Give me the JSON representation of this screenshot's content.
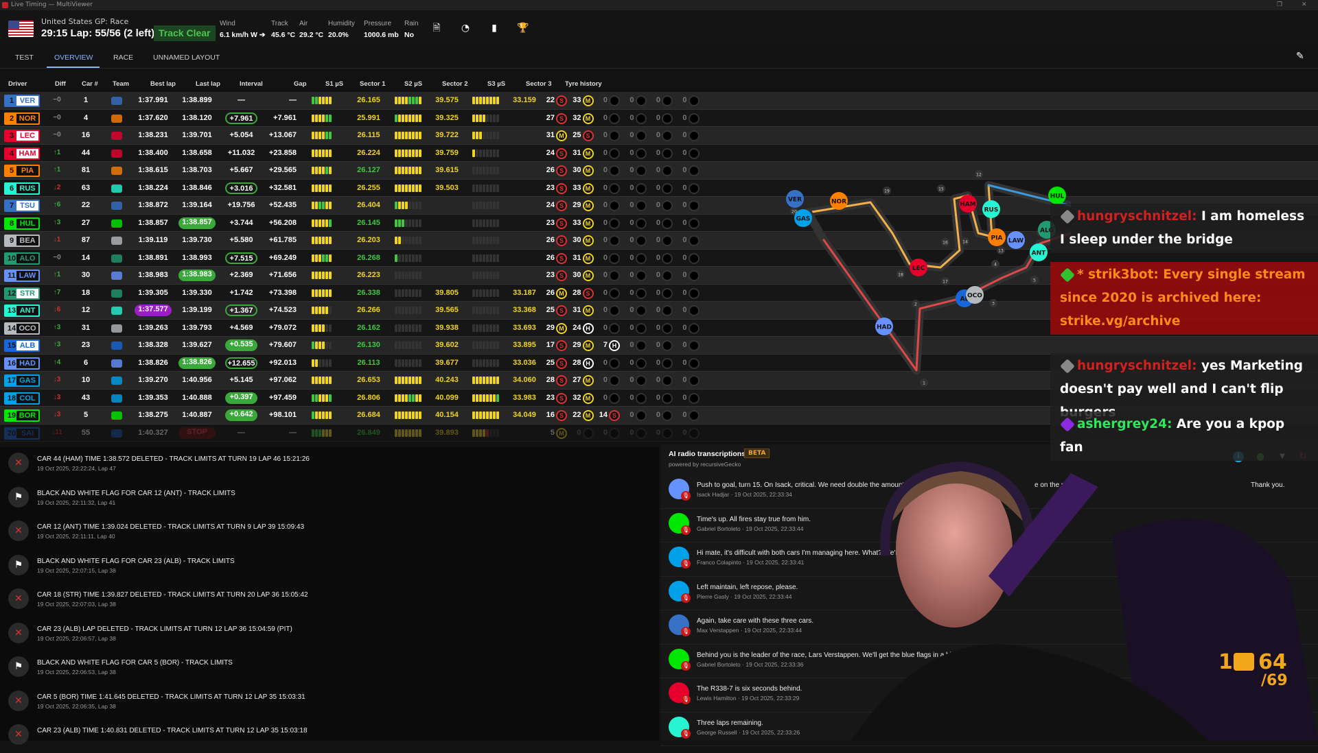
{
  "window": {
    "title": "Live Timing — MultiViewer"
  },
  "header": {
    "event": "United States GP: Race",
    "lap_line": "29:15 Lap: 55/56 (2 left)",
    "track_status": "Track Clear",
    "weather": [
      {
        "label": "Wind",
        "value": "6.1 km/h W ➔"
      },
      {
        "label": "Track",
        "value": "45.6 °C"
      },
      {
        "label": "Air",
        "value": "29.2 °C"
      },
      {
        "label": "Humidity",
        "value": "20.0%"
      },
      {
        "label": "Pressure",
        "value": "1000.6 mb"
      },
      {
        "label": "Rain",
        "value": "No"
      }
    ],
    "icons": [
      "document-search-icon",
      "speedometer-icon",
      "bar-chart-icon",
      "trophy-icon"
    ]
  },
  "tabs": [
    {
      "label": "TEST"
    },
    {
      "label": "OVERVIEW",
      "active": true
    },
    {
      "label": "RACE"
    },
    {
      "label": "UNNAMED LAYOUT"
    }
  ],
  "table": {
    "columns": [
      "Driver",
      "Diff",
      "Car #",
      "Team",
      "Best lap",
      "Last lap",
      "Interval",
      "Gap",
      "S1 µS",
      "Sector 1",
      "S2 µS",
      "Sector 2",
      "S3 µS",
      "Sector 3",
      "Tyre history"
    ],
    "rows": [
      {
        "pos": "1",
        "code": "VER",
        "color": "#3671C6",
        "light": true,
        "diff": "−0",
        "car": "1",
        "team": "Red Bull",
        "best": "1:37.991",
        "last": "1:38.899",
        "interval": "—",
        "gap": "—",
        "s1b": "ggyyyy",
        "s1": "26.165",
        "s1c": "y",
        "s2b": "yyyygggy",
        "s2": "39.575",
        "s2c": "y",
        "s3b": "yyyyyyyy",
        "s3": "33.159",
        "tyres": [
          [
            "22",
            "S"
          ],
          [
            "33",
            "M"
          ]
        ]
      },
      {
        "pos": "2",
        "code": "NOR",
        "color": "#FF8000",
        "diff": "−0",
        "car": "4",
        "team": "McLaren",
        "best": "1:37.620",
        "last": "1:38.120",
        "interval": "+7.961",
        "int_style": "outline",
        "gap": "+7.961",
        "s1b": "yyyygg",
        "s1": "25.991",
        "s1c": "y",
        "s2b": "gyyyyyyy",
        "s2": "39.325",
        "s2c": "y",
        "s3b": "yyyydddd",
        "s3": "",
        "tyres": [
          [
            "27",
            "S"
          ],
          [
            "32",
            "M"
          ]
        ]
      },
      {
        "pos": "3",
        "code": "LEC",
        "color": "#E8002D",
        "light": true,
        "diff": "−0",
        "car": "16",
        "team": "Ferrari",
        "best": "1:38.231",
        "last": "1:39.701",
        "interval": "+5.054",
        "gap": "+13.067",
        "s1b": "yyyygg",
        "s1": "26.115",
        "s1c": "y",
        "s2b": "yyyyyyyy",
        "s2": "39.722",
        "s2c": "y",
        "s3b": "yyyddddd",
        "s3": "",
        "tyres": [
          [
            "31",
            "M"
          ],
          [
            "25",
            "S"
          ]
        ]
      },
      {
        "pos": "4",
        "code": "HAM",
        "color": "#E8002D",
        "light": true,
        "diff": "↑1",
        "car": "44",
        "team": "Ferrari",
        "best": "1:38.400",
        "last": "1:38.658",
        "interval": "+11.032",
        "gap": "+23.858",
        "s1b": "yyyyyy",
        "s1": "26.224",
        "s1c": "y",
        "s2b": "yyyyyyyy",
        "s2": "39.759",
        "s2c": "y",
        "s3b": "yddddddd",
        "s3": "",
        "tyres": [
          [
            "24",
            "S"
          ],
          [
            "31",
            "M"
          ]
        ]
      },
      {
        "pos": "5",
        "code": "PIA",
        "color": "#FF8000",
        "diff": "↑1",
        "car": "81",
        "team": "McLaren",
        "best": "1:38.615",
        "last": "1:38.703",
        "interval": "+5.667",
        "gap": "+29.565",
        "s1b": "yyyygy",
        "s1": "26.127",
        "s1c": "g",
        "s2b": "yyyyyyyy",
        "s2": "39.615",
        "s2c": "y",
        "s3b": "dddddddd",
        "s3": "",
        "tyres": [
          [
            "26",
            "S"
          ],
          [
            "30",
            "M"
          ]
        ]
      },
      {
        "pos": "6",
        "code": "RUS",
        "color": "#27F4D2",
        "diff": "↓2",
        "car": "63",
        "team": "Mercedes",
        "best": "1:38.224",
        "last": "1:38.846",
        "interval": "+3.016",
        "int_style": "outline",
        "gap": "+32.581",
        "s1b": "yyyyyy",
        "s1": "26.255",
        "s1c": "y",
        "s2b": "yyyyyyyy",
        "s2": "39.503",
        "s2c": "y",
        "s3b": "dddddddd",
        "s3": "",
        "tyres": [
          [
            "23",
            "S"
          ],
          [
            "33",
            "M"
          ]
        ]
      },
      {
        "pos": "7",
        "code": "TSU",
        "color": "#3671C6",
        "light": true,
        "diff": "↑6",
        "car": "22",
        "team": "Red Bull",
        "best": "1:38.872",
        "last": "1:39.164",
        "interval": "+19.756",
        "gap": "+52.435",
        "s1b": "yyggyy",
        "s1": "26.404",
        "s1c": "y",
        "s2b": "gyyydddd",
        "s2": "",
        "s2c": "y",
        "s3b": "dddddddd",
        "s3": "",
        "tyres": [
          [
            "24",
            "S"
          ],
          [
            "29",
            "M"
          ]
        ]
      },
      {
        "pos": "8",
        "code": "HUL",
        "color": "#00E701",
        "diff": "↑3",
        "car": "27",
        "team": "Kick Sauber",
        "best": "1:38.857",
        "last": "1:38.857",
        "last_style": "green",
        "interval": "+3.744",
        "gap": "+56.208",
        "s1b": "yyyyyg",
        "s1": "26.145",
        "s1c": "g",
        "s2b": "gggddddd",
        "s2": "",
        "s2c": "y",
        "s3b": "dddddddd",
        "s3": "",
        "tyres": [
          [
            "23",
            "S"
          ],
          [
            "33",
            "M"
          ]
        ]
      },
      {
        "pos": "9",
        "code": "BEA",
        "color": "#B6BABD",
        "diff": "↓1",
        "car": "87",
        "team": "Haas",
        "best": "1:39.119",
        "last": "1:39.730",
        "interval": "+5.580",
        "gap": "+61.785",
        "s1b": "yyyyyy",
        "s1": "26.203",
        "s1c": "y",
        "s2b": "yydddddd",
        "s2": "",
        "s2c": "y",
        "s3b": "dddddddd",
        "s3": "",
        "tyres": [
          [
            "26",
            "S"
          ],
          [
            "30",
            "M"
          ]
        ]
      },
      {
        "pos": "10",
        "code": "ALO",
        "color": "#229971",
        "diff": "−0",
        "car": "14",
        "team": "Aston Martin",
        "best": "1:38.891",
        "last": "1:38.993",
        "interval": "+7.515",
        "int_style": "outline",
        "gap": "+69.249",
        "s1b": "yyyggy",
        "s1": "26.268",
        "s1c": "g",
        "s2b": "gddddddd",
        "s2": "",
        "s2c": "y",
        "s3b": "dddddddd",
        "s3": "",
        "tyres": [
          [
            "26",
            "S"
          ],
          [
            "31",
            "M"
          ]
        ]
      },
      {
        "pos": "11",
        "code": "LAW",
        "color": "#6692FF",
        "diff": "↑1",
        "car": "30",
        "team": "Racing Bulls",
        "best": "1:38.983",
        "last": "1:38.983",
        "last_style": "green",
        "interval": "+2.369",
        "gap": "+71.656",
        "s1b": "yyyyyy",
        "s1": "26.223",
        "s1c": "y",
        "s2b": "dddddddd",
        "s2": "",
        "s2c": "y",
        "s3b": "dddddddd",
        "s3": "",
        "tyres": [
          [
            "23",
            "S"
          ],
          [
            "30",
            "M"
          ]
        ]
      },
      {
        "pos": "12",
        "code": "STR",
        "color": "#229971",
        "light": true,
        "diff": "↑7",
        "car": "18",
        "team": "Aston Martin",
        "best": "1:39.305",
        "last": "1:39.330",
        "interval": "+1.742",
        "gap": "+73.398",
        "s1b": "yyyyyy",
        "s1": "26.338",
        "s1c": "g",
        "s2b": "dddddddd",
        "s2": "39.805",
        "s2c": "y",
        "s3b": "dddddddd",
        "s3": "33.187",
        "tyres": [
          [
            "26",
            "M"
          ],
          [
            "28",
            "S"
          ]
        ]
      },
      {
        "pos": "13",
        "code": "ANT",
        "color": "#27F4D2",
        "diff": "↓6",
        "car": "12",
        "team": "Mercedes",
        "best": "1:37.577",
        "best_style": "purple",
        "last": "1:39.199",
        "interval": "+1.367",
        "int_style": "outline",
        "gap": "+74.523",
        "s1b": "yyyyyd",
        "s1": "26.266",
        "s1c": "y",
        "s2b": "dddddddd",
        "s2": "39.565",
        "s2c": "y",
        "s3b": "dddddddd",
        "s3": "33.368",
        "tyres": [
          [
            "25",
            "S"
          ],
          [
            "31",
            "M"
          ]
        ]
      },
      {
        "pos": "14",
        "code": "OCO",
        "color": "#B6BABD",
        "diff": "↑3",
        "car": "31",
        "team": "Haas",
        "best": "1:39.263",
        "last": "1:39.793",
        "interval": "+4.569",
        "gap": "+79.072",
        "s1b": "yyyydd",
        "s1": "26.162",
        "s1c": "g",
        "s2b": "dddddddd",
        "s2": "39.938",
        "s2c": "y",
        "s3b": "dddddddd",
        "s3": "33.693",
        "tyres": [
          [
            "29",
            "M"
          ],
          [
            "24",
            "H"
          ]
        ]
      },
      {
        "pos": "15",
        "code": "ALB",
        "color": "#1868DB",
        "light": true,
        "diff": "↑3",
        "car": "23",
        "team": "Williams",
        "best": "1:38.328",
        "last": "1:39.627",
        "interval": "+0.535",
        "int_style": "fill",
        "gap": "+79.607",
        "s1b": "gyyydd",
        "s1": "26.130",
        "s1c": "g",
        "s2b": "dddddddd",
        "s2": "39.602",
        "s2c": "y",
        "s3b": "dddddddd",
        "s3": "33.895",
        "tyres": [
          [
            "17",
            "S"
          ],
          [
            "29",
            "M"
          ],
          [
            "7",
            "H"
          ]
        ]
      },
      {
        "pos": "16",
        "code": "HAD",
        "color": "#6692FF",
        "diff": "↑4",
        "car": "6",
        "team": "Racing Bulls",
        "best": "1:38.826",
        "last": "1:38.826",
        "last_style": "green",
        "interval": "+12.655",
        "int_style": "outline",
        "gap": "+92.013",
        "s1b": "yydddd",
        "s1": "26.113",
        "s1c": "g",
        "s2b": "dddddddd",
        "s2": "39.677",
        "s2c": "y",
        "s3b": "dddddddd",
        "s3": "33.036",
        "tyres": [
          [
            "25",
            "S"
          ],
          [
            "28",
            "H"
          ]
        ]
      },
      {
        "pos": "17",
        "code": "GAS",
        "color": "#00A1E8",
        "diff": "↓3",
        "car": "10",
        "team": "Alpine",
        "best": "1:39.270",
        "last": "1:40.956",
        "interval": "+5.145",
        "gap": "+97.062",
        "s1b": "yyyyyy",
        "s1": "26.653",
        "s1c": "y",
        "s2b": "yyyyyyyy",
        "s2": "40.243",
        "s2c": "y",
        "s3b": "yyyyyyyy",
        "s3": "34.060",
        "tyres": [
          [
            "28",
            "S"
          ],
          [
            "27",
            "M"
          ]
        ]
      },
      {
        "pos": "18",
        "code": "COL",
        "color": "#00A1E8",
        "diff": "↓3",
        "car": "43",
        "team": "Alpine",
        "best": "1:39.353",
        "last": "1:40.888",
        "interval": "+0.397",
        "int_style": "fill",
        "gap": "+97.459",
        "s1b": "ggyyyg",
        "s1": "26.806",
        "s1c": "y",
        "s2b": "yyyyggyy",
        "s2": "40.099",
        "s2c": "y",
        "s3b": "yyyyyyyg",
        "s3": "33.983",
        "tyres": [
          [
            "23",
            "S"
          ],
          [
            "32",
            "M"
          ]
        ]
      },
      {
        "pos": "19",
        "code": "BOR",
        "color": "#00E701",
        "diff": "↓3",
        "car": "5",
        "team": "Kick Sauber",
        "best": "1:38.275",
        "last": "1:40.887",
        "interval": "+0.642",
        "int_style": "fill",
        "gap": "+98.101",
        "s1b": "gyyyyy",
        "s1": "26.684",
        "s1c": "y",
        "s2b": "yyyyyyyy",
        "s2": "40.154",
        "s2c": "y",
        "s3b": "yyyyyyyy",
        "s3": "34.049",
        "tyres": [
          [
            "16",
            "S"
          ],
          [
            "22",
            "M"
          ],
          [
            "14",
            "S"
          ]
        ]
      },
      {
        "pos": "20",
        "code": "SAI",
        "color": "#1868DB",
        "dim": true,
        "diff": "↓11",
        "car": "55",
        "team": "Williams",
        "best": "1:40.327",
        "last": "STOP",
        "last_style": "stop",
        "interval": "—",
        "gap": "—",
        "s1b": "gggyyy",
        "s1": "26.849",
        "s1c": "g",
        "s2b": "yyyyyyyy",
        "s2": "39.893",
        "s2c": "y",
        "s3b": "yyyyrddd",
        "s3": "",
        "tyres": [
          [
            "5",
            "M"
          ]
        ]
      }
    ]
  },
  "map": {
    "cars": [
      {
        "code": "VER",
        "color": "#3671C6"
      },
      {
        "code": "GAS",
        "color": "#00A1E8"
      },
      {
        "code": "NOR",
        "color": "#FF8000"
      },
      {
        "code": "LEC",
        "color": "#E8002D"
      },
      {
        "code": "HAM",
        "color": "#E8002D"
      },
      {
        "code": "RUS",
        "color": "#27F4D2"
      },
      {
        "code": "PIA",
        "color": "#FF8000"
      },
      {
        "code": "HAD",
        "color": "#6692FF"
      },
      {
        "code": "AL",
        "color": "#1868DB"
      },
      {
        "code": "OCO",
        "color": "#B6BABD"
      },
      {
        "code": "ANT",
        "color": "#27F4D2"
      },
      {
        "code": "HUL",
        "color": "#00E701"
      },
      {
        "code": "LAW",
        "color": "#6692FF"
      },
      {
        "code": "ALO",
        "color": "#229971"
      }
    ],
    "turns": [
      "1",
      "2",
      "3",
      "4",
      "5",
      "6",
      "12",
      "13",
      "14",
      "15",
      "16",
      "17",
      "18",
      "19",
      "20"
    ]
  },
  "race_control": [
    {
      "icon": "x",
      "text": "CAR 44 (HAM) TIME 1:38.572 DELETED - TRACK LIMITS AT TURN 19 LAP 46 15:21:26",
      "sub": "19 Oct 2025, 22:22:24, Lap 47"
    },
    {
      "icon": "flag",
      "text": "BLACK AND WHITE FLAG FOR CAR 12 (ANT) - TRACK LIMITS",
      "sub": "19 Oct 2025, 22:11:32, Lap 41"
    },
    {
      "icon": "x",
      "text": "CAR 12 (ANT) TIME 1:39.024 DELETED - TRACK LIMITS AT TURN 9 LAP 39 15:09:43",
      "sub": "19 Oct 2025, 22:11:11, Lap 40"
    },
    {
      "icon": "flag",
      "text": "BLACK AND WHITE FLAG FOR CAR 23 (ALB) - TRACK LIMITS",
      "sub": "19 Oct 2025, 22:07:15, Lap 38"
    },
    {
      "icon": "x",
      "text": "CAR 18 (STR) TIME 1:39.827 DELETED - TRACK LIMITS AT TURN 20 LAP 36 15:05:42",
      "sub": "19 Oct 2025, 22:07:03, Lap 38"
    },
    {
      "icon": "x",
      "text": "CAR 23 (ALB) LAP DELETED - TRACK LIMITS AT TURN 12 LAP 36 15:04:59 (PIT)",
      "sub": "19 Oct 2025, 22:06:57, Lap 38"
    },
    {
      "icon": "flag",
      "text": "BLACK AND WHITE FLAG FOR CAR 5 (BOR) - TRACK LIMITS",
      "sub": "19 Oct 2025, 22:06:53, Lap 38"
    },
    {
      "icon": "x",
      "text": "CAR 5 (BOR) TIME 1:41.645 DELETED - TRACK LIMITS AT TURN 12 LAP 35 15:03:31",
      "sub": "19 Oct 2025, 22:06:35, Lap 38"
    },
    {
      "icon": "x",
      "text": "CAR 23 (ALB) TIME 1:40.831 DELETED - TRACK LIMITS AT TURN 12 LAP 35 15:03:18",
      "sub": ""
    }
  ],
  "radio": {
    "title": "AI radio transcriptions",
    "badge": "BETA",
    "powered": "powered by recursiveGecko",
    "icons": [
      {
        "name": "info-icon",
        "color": "#29a8e0"
      },
      {
        "name": "piggy-bank-icon",
        "color": "#4cc74f"
      },
      {
        "name": "filter-icon",
        "color": "#ffffff"
      },
      {
        "name": "refresh-icon",
        "color": "#e03030"
      }
    ],
    "items": [
      {
        "text": "Push to goal, turn 15. On Isack, critical. We need double the amount of lift-off from what you're doing",
        "tail": "e on the pa",
        "end": "Thank you.",
        "sub": "Isack Hadjar · 19 Oct 2025, 22:33:34",
        "color": "#6692FF"
      },
      {
        "text": "Time's up. All fires stay true from him.",
        "sub": "Gabriel Bortoleto · 19 Oct 2025, 22:33:44",
        "color": "#00E701"
      },
      {
        "text": "Hi mate, it's difficult with both cars I'm managing here. What? We're political, mate. What's the matte",
        "sub": "Franco Colapinto · 19 Oct 2025, 22:33:41",
        "color": "#00A1E8"
      },
      {
        "text": "Left maintain, left repose, please.",
        "sub": "Pierre Gasly · 19 Oct 2025, 22:33:44",
        "color": "#00A1E8"
      },
      {
        "text": "Again, take care with these three cars.",
        "sub": "Max Verstappen · 19 Oct 2025, 22:33:44",
        "color": "#3671C6"
      },
      {
        "text": "Behind you is the leader of the race, Lars Verstappen. We'll get the blue flags in a bi",
        "sub": "Gabriel Bortoleto · 19 Oct 2025, 22:33:36",
        "color": "#00E701"
      },
      {
        "text": "The R338-7 is six seconds behind.",
        "sub": "Lewis Hamilton · 19 Oct 2025, 22:33:29",
        "color": "#E8002D"
      },
      {
        "text": "Three laps remaining.",
        "sub": "George Russell · 19 Oct 2025, 22:33:26",
        "color": "#27F4D2"
      }
    ]
  },
  "chat": [
    {
      "user": "hungryschnitzel:",
      "text": "I am homeless I sleep under the bridge"
    },
    {
      "user": "* strik3bot:",
      "text": "Every single stream since 2020 is archived here: strike.vg/archive",
      "highlight": true
    },
    {
      "user": "hungryschnitzel:",
      "text": "yes Marketing doesn't pay well and I can't flip burgers"
    },
    {
      "user": "ashergrey24:",
      "text": "Are you a kpop fan",
      "user_color": "#2ee85a"
    }
  ],
  "overlay_counter": {
    "a": "1",
    "b": "64",
    "c": "/69"
  },
  "colors": {
    "yellow": "#f0d41e",
    "green": "#3fc83f",
    "purple": "#a020c8",
    "dim": "#333333",
    "soft": "#e03030",
    "medium": "#f0d41e",
    "hard": "#ffffff"
  }
}
